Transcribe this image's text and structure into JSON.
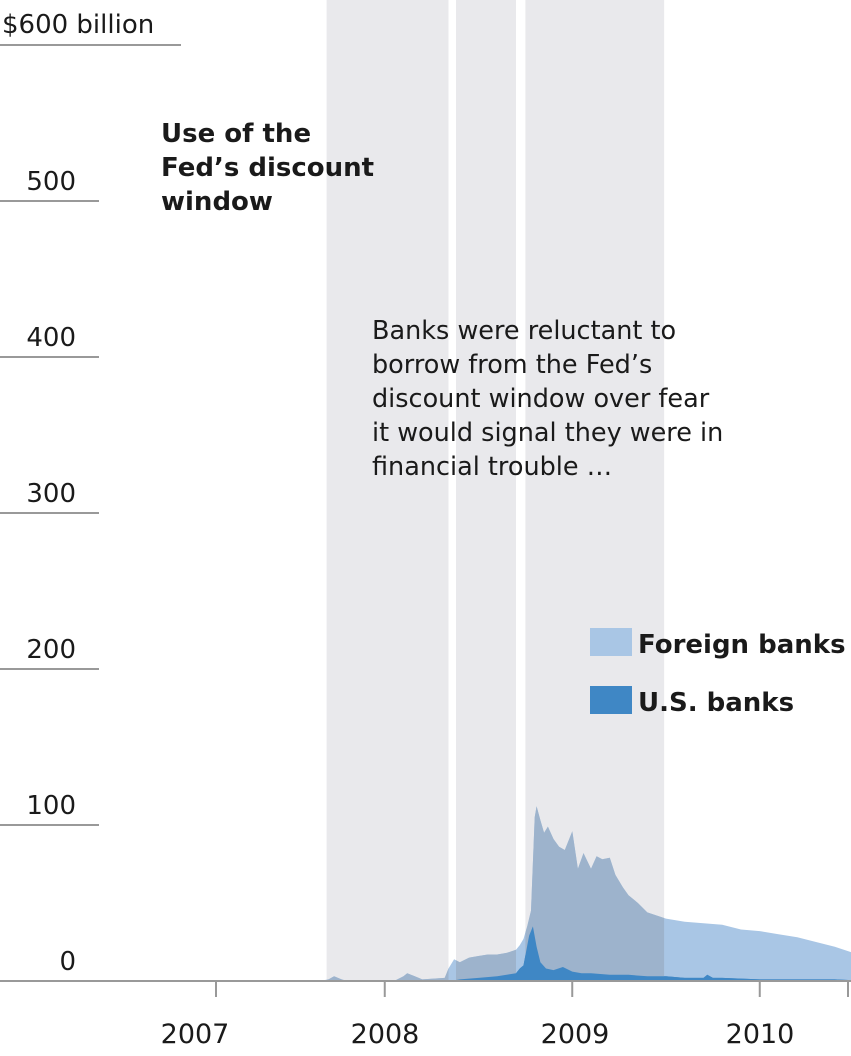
{
  "chart_data": {
    "type": "area",
    "title": [
      "Use of the",
      "Fed’s discount",
      "window"
    ],
    "annotation": [
      "Banks were reluctant to",
      "borrow from the Fed’s",
      "discount window over fear",
      "it would signal they were in",
      "financial trouble …"
    ],
    "y_unit_label": "$600 billion",
    "y_ticks": [
      0,
      100,
      200,
      300,
      400,
      500
    ],
    "ylim": [
      0,
      600
    ],
    "x_ticks": [
      2007,
      2008,
      2009,
      2010
    ],
    "xlim": [
      2006.6,
      2010.95
    ],
    "grid": false,
    "legend": {
      "placement": "right",
      "entries": [
        "Foreign banks",
        "U.S. banks"
      ]
    },
    "colors": {
      "foreign": "#a9c6e5",
      "us": "#3f87c5",
      "shade": "#e9e9ec",
      "axis": "#999999"
    },
    "shaded_periods": [
      [
        2007.19,
        2007.84
      ],
      [
        2007.88,
        2008.2
      ],
      [
        2008.25,
        2008.99
      ]
    ],
    "series": [
      {
        "name": "Foreign banks",
        "x": [
          2006.6,
          2007.15,
          2007.2,
          2007.23,
          2007.27,
          2007.3,
          2007.55,
          2007.6,
          2007.62,
          2007.66,
          2007.7,
          2007.82,
          2007.84,
          2007.87,
          2007.9,
          2007.95,
          2008.0,
          2008.05,
          2008.1,
          2008.15,
          2008.2,
          2008.22,
          2008.24,
          2008.26,
          2008.28,
          2008.3,
          2008.31,
          2008.33,
          2008.35,
          2008.37,
          2008.4,
          2008.43,
          2008.46,
          2008.5,
          2008.53,
          2008.56,
          2008.6,
          2008.63,
          2008.66,
          2008.7,
          2008.73,
          2008.77,
          2008.8,
          2008.85,
          2008.9,
          2008.95,
          2009.0,
          2009.1,
          2009.2,
          2009.3,
          2009.4,
          2009.5,
          2009.6,
          2009.7,
          2009.8,
          2009.9,
          2010.0,
          2010.1,
          2010.2,
          2010.3,
          2010.37,
          2010.4,
          2010.45,
          2010.95
        ],
        "values": [
          0,
          0,
          1,
          3,
          1,
          0,
          0,
          3,
          5,
          3,
          1,
          2,
          8,
          14,
          12,
          15,
          16,
          17,
          17,
          18,
          20,
          23,
          27,
          35,
          45,
          105,
          112,
          103,
          95,
          99,
          91,
          86,
          84,
          96,
          72,
          82,
          72,
          80,
          78,
          79,
          68,
          60,
          55,
          50,
          44,
          42,
          40,
          38,
          37,
          36,
          33,
          32,
          30,
          28,
          25,
          22,
          18,
          14,
          10,
          6,
          2,
          0,
          0,
          0
        ]
      },
      {
        "name": "U.S. banks",
        "x": [
          2006.6,
          2007.85,
          2007.9,
          2008.0,
          2008.1,
          2008.15,
          2008.2,
          2008.22,
          2008.24,
          2008.27,
          2008.29,
          2008.31,
          2008.33,
          2008.36,
          2008.4,
          2008.45,
          2008.5,
          2008.55,
          2008.6,
          2008.7,
          2008.8,
          2008.9,
          2009.0,
          2009.1,
          2009.2,
          2009.22,
          2009.25,
          2009.3,
          2009.5,
          2009.7,
          2009.9,
          2010.1,
          2010.3,
          2010.95
        ],
        "values": [
          0,
          0,
          1,
          2,
          3,
          4,
          5,
          8,
          10,
          29,
          35,
          22,
          12,
          8,
          7,
          9,
          6,
          5,
          5,
          4,
          4,
          3,
          3,
          2,
          2,
          4,
          2,
          2,
          1,
          1,
          1,
          0,
          0,
          0
        ]
      }
    ]
  }
}
